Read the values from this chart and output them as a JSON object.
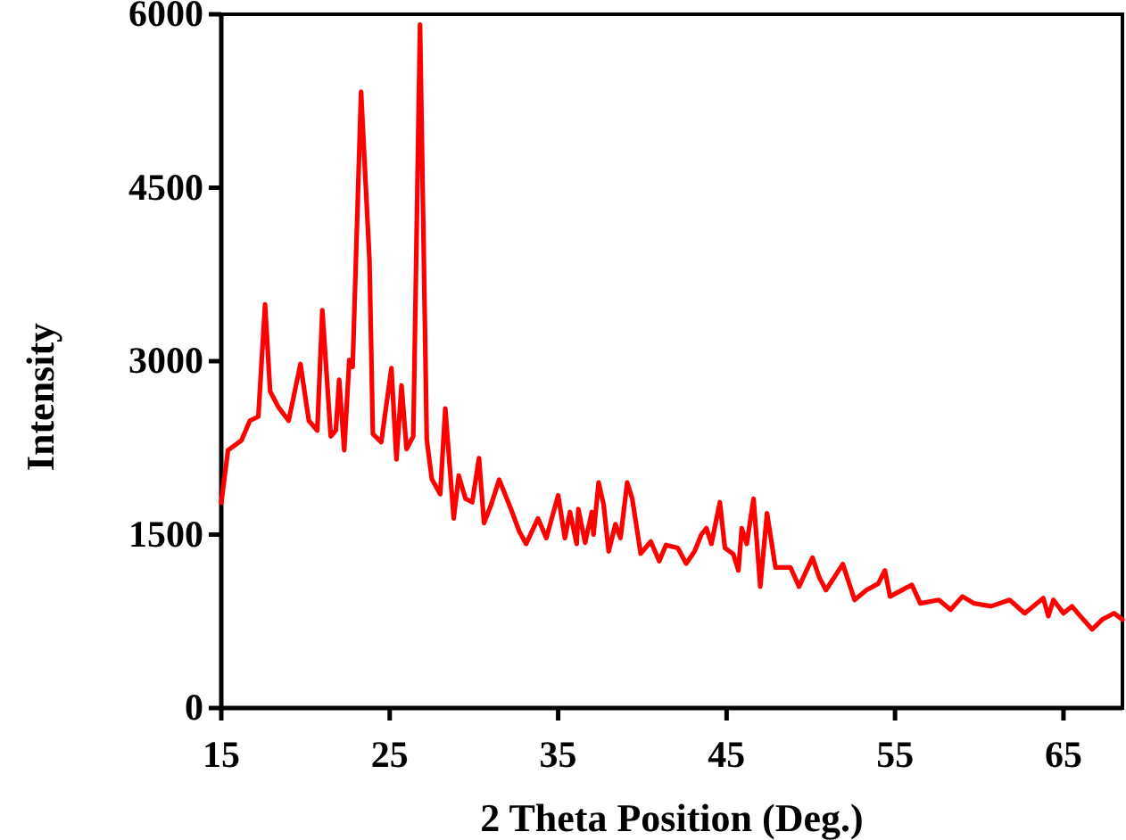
{
  "chart_data": {
    "type": "line",
    "xlabel": "2 Theta Position (Deg.)",
    "ylabel": "Intensity",
    "xlim": [
      15,
      68.5
    ],
    "xticks": [
      15,
      25,
      35,
      45,
      55,
      65
    ],
    "ylim": [
      0,
      6000
    ],
    "yticks": [
      0,
      1500,
      3000,
      4500,
      6000
    ],
    "grid": false,
    "marker": "none",
    "line_style": "solid",
    "series": [
      {
        "color": "#ff0000",
        "x": [
          15,
          15.4,
          16.2,
          16.7,
          17.2,
          17.6,
          17.9,
          18.4,
          19.0,
          19.7,
          20.2,
          20.7,
          21.0,
          21.5,
          21.8,
          22.0,
          22.3,
          22.6,
          22.8,
          23.3,
          23.8,
          24.0,
          24.5,
          25.1,
          25.4,
          25.7,
          26.0,
          26.4,
          26.8,
          27.2,
          27.5,
          28.0,
          28.3,
          28.8,
          29.1,
          29.5,
          29.9,
          30.3,
          30.6,
          31.0,
          31.5,
          32.2,
          32.7,
          33.1,
          33.8,
          34.3,
          35.0,
          35.4,
          35.7,
          36.1,
          36.2,
          36.6,
          37.0,
          37.1,
          37.4,
          37.7,
          38.0,
          38.4,
          38.7,
          39.1,
          39.4,
          39.9,
          40.5,
          41.0,
          41.4,
          42.1,
          42.6,
          43.1,
          43.5,
          43.8,
          44.1,
          44.6,
          44.9,
          45.4,
          45.7,
          45.9,
          46.2,
          46.6,
          47.0,
          47.4,
          47.9,
          48.8,
          49.3,
          50.1,
          50.5,
          50.9,
          51.9,
          52.6,
          53.3,
          54.0,
          54.4,
          54.7,
          56.0,
          56.5,
          57.6,
          58.3,
          59.0,
          59.7,
          60.7,
          61.8,
          62.7,
          63.8,
          64.1,
          64.4,
          65.0,
          65.5,
          66.0,
          66.7,
          67.3,
          68.0,
          68.5
        ],
        "values": [
          1775,
          2230,
          2315,
          2485,
          2520,
          3490,
          2740,
          2600,
          2485,
          2975,
          2485,
          2400,
          3440,
          2350,
          2400,
          2840,
          2230,
          3010,
          2950,
          5330,
          3870,
          2370,
          2300,
          2940,
          2150,
          2790,
          2240,
          2350,
          5910,
          2320,
          1980,
          1850,
          2590,
          1640,
          2010,
          1810,
          1780,
          2160,
          1600,
          1750,
          1975,
          1720,
          1525,
          1420,
          1640,
          1470,
          1840,
          1470,
          1695,
          1420,
          1720,
          1430,
          1695,
          1500,
          1950,
          1760,
          1355,
          1590,
          1470,
          1950,
          1810,
          1335,
          1440,
          1270,
          1410,
          1385,
          1250,
          1355,
          1500,
          1555,
          1420,
          1780,
          1385,
          1330,
          1190,
          1555,
          1420,
          1810,
          1050,
          1685,
          1215,
          1215,
          1050,
          1300,
          1130,
          1020,
          1245,
          935,
          1020,
          1075,
          1190,
          965,
          1065,
          905,
          935,
          850,
          965,
          905,
          880,
          935,
          820,
          950,
          795,
          935,
          820,
          880,
          795,
          680,
          765,
          820,
          765
        ]
      }
    ]
  }
}
